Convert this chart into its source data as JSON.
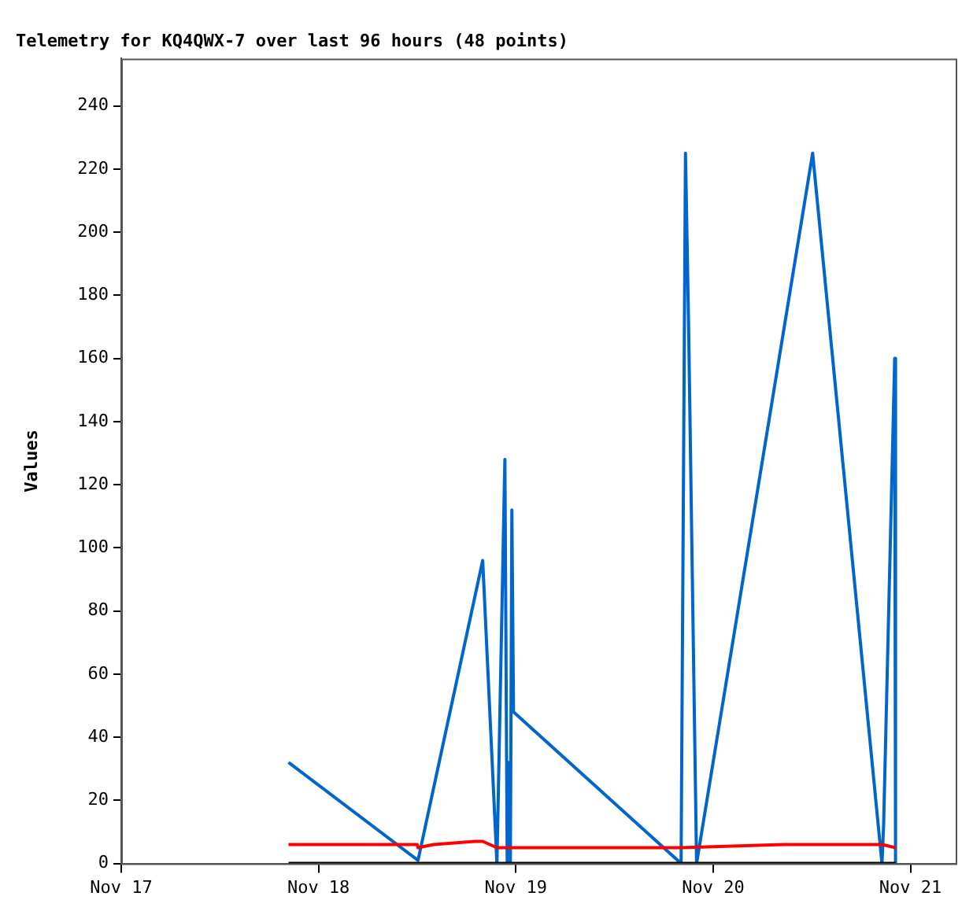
{
  "chart_data": {
    "type": "line",
    "title": "Telemetry for KQ4QWX-7 over last 96 hours (48 points)",
    "ylabel": "Values",
    "xlim": [
      "--11-17T00:00",
      "--11-21T05:30"
    ],
    "xticks": [
      {
        "value": "--11-17T00:00",
        "label": "Nov 17"
      },
      {
        "value": "--11-18T00:00",
        "label": "Nov 18"
      },
      {
        "value": "--11-19T00:00",
        "label": "Nov 19"
      },
      {
        "value": "--11-20T00:00",
        "label": "Nov 20"
      },
      {
        "value": "--11-21T00:00",
        "label": "Nov 21"
      }
    ],
    "ylim": [
      0,
      255
    ],
    "yticks": [
      0,
      20,
      40,
      60,
      80,
      100,
      120,
      140,
      160,
      180,
      200,
      220,
      240
    ],
    "grid": false,
    "legend": false,
    "marker": "none",
    "line_style": "solid",
    "series": [
      {
        "color": "#000000",
        "x": [
          "--11-17T20:21",
          "--11-20T22:11"
        ],
        "values": [
          0,
          0
        ]
      },
      {
        "color": "#ff0000",
        "x": [
          "--11-17T20:21",
          "--11-18T12:00",
          "--11-18T12:06",
          "--11-18T14:00",
          "--11-18T19:00",
          "--11-18T19:58",
          "--11-18T21:42",
          "--11-19T20:06",
          "--11-20T08:36",
          "--11-20T20:32",
          "--11-20T22:11"
        ],
        "values": [
          6,
          6,
          5,
          6,
          7,
          7,
          5,
          5,
          6,
          6,
          5
        ]
      },
      {
        "color": "#0066cc",
        "x": [
          "--11-17T20:21",
          "--11-18T12:06",
          "--11-18T19:58",
          "--11-18T21:42",
          "--11-18T22:40",
          "--11-18T22:57",
          "--11-18T23:08",
          "--11-18T23:20",
          "--11-18T23:31",
          "--11-18T23:43",
          "--11-19T20:06",
          "--11-19T20:38",
          "--11-19T21:01",
          "--11-19T21:59",
          "--11-20T12:06",
          "--11-20T20:32",
          "--11-20T20:44",
          "--11-20T22:05",
          "--11-20T22:11"
        ],
        "values": [
          32,
          1,
          96,
          0,
          128,
          0,
          32,
          0,
          112,
          48,
          0,
          225,
          170,
          0,
          225,
          0,
          12,
          160,
          0
        ]
      }
    ]
  }
}
